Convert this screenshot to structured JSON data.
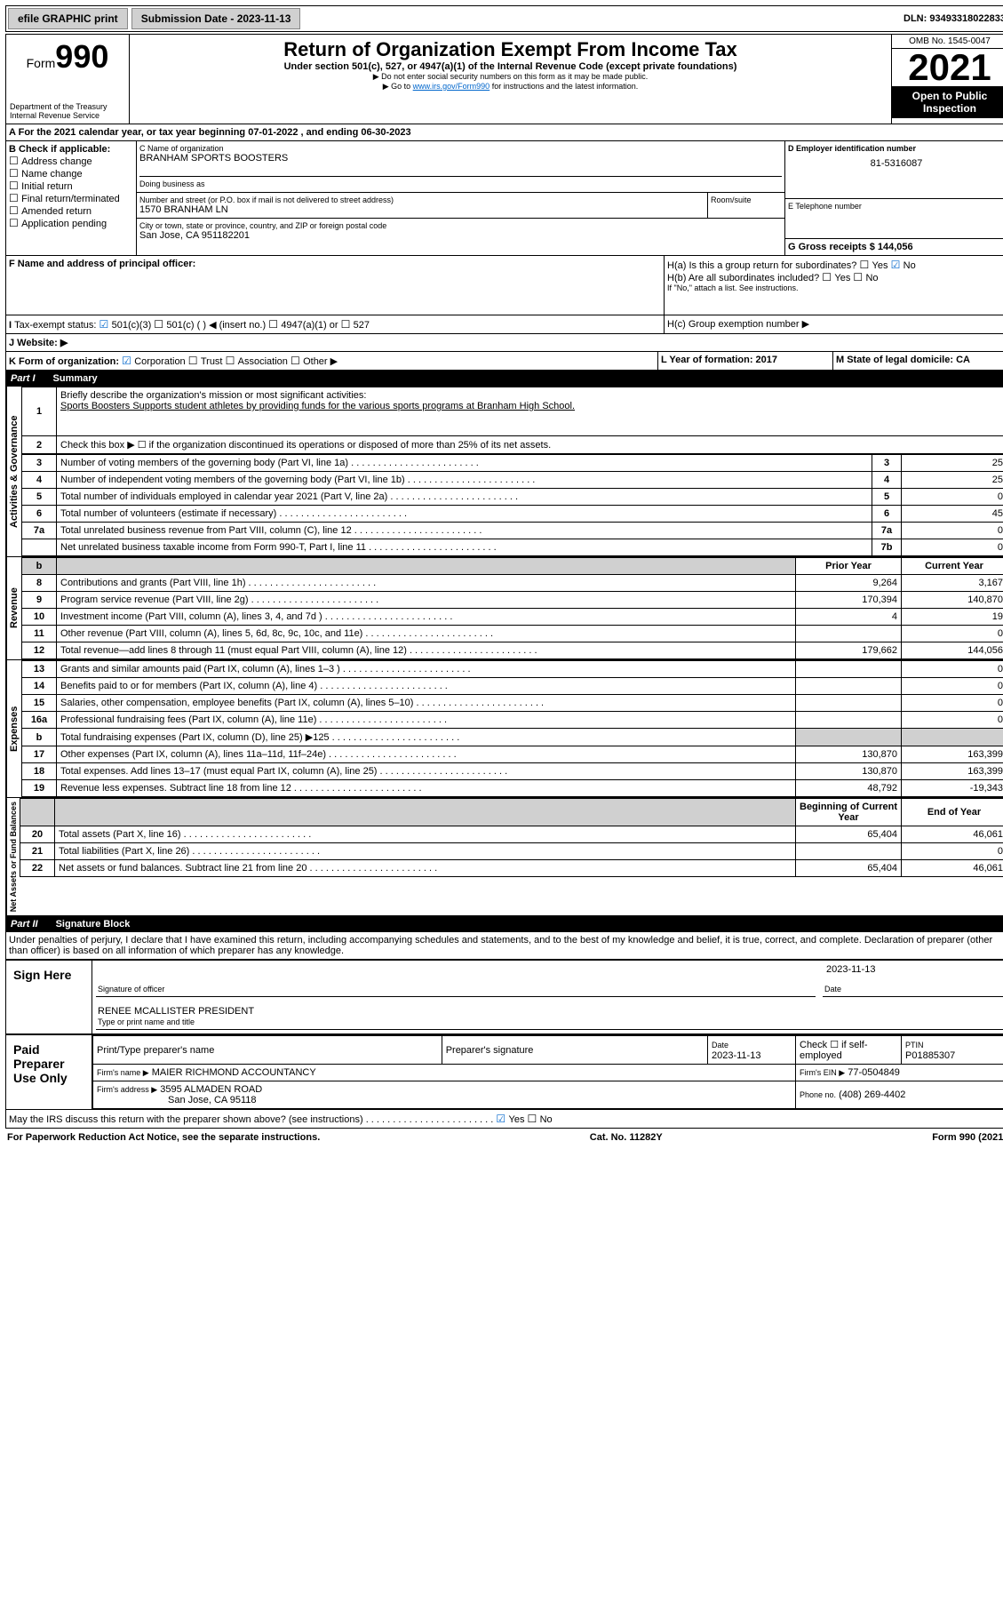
{
  "topbar": {
    "efile": "efile GRAPHIC print",
    "sub_label": "Submission Date - 2023-11-13",
    "dln": "DLN: 93493318022833"
  },
  "header": {
    "form_word": "Form",
    "form_num": "990",
    "dept": "Department of the Treasury",
    "irs": "Internal Revenue Service",
    "title": "Return of Organization Exempt From Income Tax",
    "sub1": "Under section 501(c), 527, or 4947(a)(1) of the Internal Revenue Code (except private foundations)",
    "sub2": "▶ Do not enter social security numbers on this form as it may be made public.",
    "sub3_pre": "▶ Go to ",
    "sub3_link": "www.irs.gov/Form990",
    "sub3_post": " for instructions and the latest information.",
    "omb": "OMB No. 1545-0047",
    "year": "2021",
    "open": "Open to Public Inspection"
  },
  "A": {
    "text": "For the 2021 calendar year, or tax year beginning 07-01-2022  , and ending 06-30-2023"
  },
  "B": {
    "label": "B Check if applicable:",
    "items": [
      "Address change",
      "Name change",
      "Initial return",
      "Final return/terminated",
      "Amended return",
      "Application pending"
    ]
  },
  "C": {
    "name_lbl": "C Name of organization",
    "name": "BRANHAM SPORTS BOOSTERS",
    "dba_lbl": "Doing business as",
    "addr_lbl": "Number and street (or P.O. box if mail is not delivered to street address)",
    "room_lbl": "Room/suite",
    "addr": "1570 BRANHAM LN",
    "city_lbl": "City or town, state or province, country, and ZIP or foreign postal code",
    "city": "San Jose, CA  951182201"
  },
  "D": {
    "lbl": "D Employer identification number",
    "val": "81-5316087"
  },
  "E": {
    "lbl": "E Telephone number"
  },
  "G": {
    "lbl": "G Gross receipts $ 144,056"
  },
  "F": {
    "lbl": "F  Name and address of principal officer:"
  },
  "H": {
    "a": "H(a)  Is this a group return for subordinates?",
    "b": "H(b)  Are all subordinates included?",
    "b_note": "If \"No,\" attach a list. See instructions.",
    "c": "H(c)  Group exemption number ▶",
    "yes": "Yes",
    "no": "No"
  },
  "I": {
    "lbl": "Tax-exempt status:",
    "opts": [
      "501(c)(3)",
      "501(c) (  ) ◀ (insert no.)",
      "4947(a)(1) or",
      "527"
    ]
  },
  "J": {
    "lbl": "J  Website: ▶"
  },
  "K": {
    "lbl": "K Form of organization:",
    "opts": [
      "Corporation",
      "Trust",
      "Association",
      "Other ▶"
    ]
  },
  "L": {
    "lbl": "L Year of formation: 2017"
  },
  "M": {
    "lbl": "M State of legal domicile: CA"
  },
  "part1": {
    "hdr_part": "Part I",
    "hdr": "Summary",
    "line1_lbl": "Briefly describe the organization's mission or most significant activities:",
    "line1": "Sports Boosters Supports student athletes by providing funds for the various sports programs at Branham High School.",
    "line2": "Check this box ▶ ☐  if the organization discontinued its operations or disposed of more than 25% of its net assets.",
    "rows": [
      {
        "n": "3",
        "t": "Number of voting members of the governing body (Part VI, line 1a)",
        "l": "3",
        "v": "25"
      },
      {
        "n": "4",
        "t": "Number of independent voting members of the governing body (Part VI, line 1b)",
        "l": "4",
        "v": "25"
      },
      {
        "n": "5",
        "t": "Total number of individuals employed in calendar year 2021 (Part V, line 2a)",
        "l": "5",
        "v": "0"
      },
      {
        "n": "6",
        "t": "Total number of volunteers (estimate if necessary)",
        "l": "6",
        "v": "45"
      },
      {
        "n": "7a",
        "t": "Total unrelated business revenue from Part VIII, column (C), line 12",
        "l": "7a",
        "v": "0"
      },
      {
        "n": "",
        "t": "Net unrelated business taxable income from Form 990-T, Part I, line 11",
        "l": "7b",
        "v": "0"
      }
    ],
    "col_prior": "Prior Year",
    "col_curr": "Current Year",
    "rev": [
      {
        "n": "8",
        "t": "Contributions and grants (Part VIII, line 1h)",
        "p": "9,264",
        "c": "3,167"
      },
      {
        "n": "9",
        "t": "Program service revenue (Part VIII, line 2g)",
        "p": "170,394",
        "c": "140,870"
      },
      {
        "n": "10",
        "t": "Investment income (Part VIII, column (A), lines 3, 4, and 7d )",
        "p": "4",
        "c": "19"
      },
      {
        "n": "11",
        "t": "Other revenue (Part VIII, column (A), lines 5, 6d, 8c, 9c, 10c, and 11e)",
        "p": "",
        "c": "0"
      },
      {
        "n": "12",
        "t": "Total revenue—add lines 8 through 11 (must equal Part VIII, column (A), line 12)",
        "p": "179,662",
        "c": "144,056"
      }
    ],
    "exp": [
      {
        "n": "13",
        "t": "Grants and similar amounts paid (Part IX, column (A), lines 1–3 )",
        "p": "",
        "c": "0"
      },
      {
        "n": "14",
        "t": "Benefits paid to or for members (Part IX, column (A), line 4)",
        "p": "",
        "c": "0"
      },
      {
        "n": "15",
        "t": "Salaries, other compensation, employee benefits (Part IX, column (A), lines 5–10)",
        "p": "",
        "c": "0"
      },
      {
        "n": "16a",
        "t": "Professional fundraising fees (Part IX, column (A), line 11e)",
        "p": "",
        "c": "0"
      },
      {
        "n": "b",
        "t": "Total fundraising expenses (Part IX, column (D), line 25) ▶125",
        "p": "shade",
        "c": "shade"
      },
      {
        "n": "17",
        "t": "Other expenses (Part IX, column (A), lines 11a–11d, 11f–24e)",
        "p": "130,870",
        "c": "163,399"
      },
      {
        "n": "18",
        "t": "Total expenses. Add lines 13–17 (must equal Part IX, column (A), line 25)",
        "p": "130,870",
        "c": "163,399"
      },
      {
        "n": "19",
        "t": "Revenue less expenses. Subtract line 18 from line 12",
        "p": "48,792",
        "c": "-19,343"
      }
    ],
    "col_beg": "Beginning of Current Year",
    "col_end": "End of Year",
    "bal": [
      {
        "n": "20",
        "t": "Total assets (Part X, line 16)",
        "p": "65,404",
        "c": "46,061"
      },
      {
        "n": "21",
        "t": "Total liabilities (Part X, line 26)",
        "p": "",
        "c": "0"
      },
      {
        "n": "22",
        "t": "Net assets or fund balances. Subtract line 21 from line 20",
        "p": "65,404",
        "c": "46,061"
      }
    ],
    "vl_ag": "Activities & Governance",
    "vl_rev": "Revenue",
    "vl_exp": "Expenses",
    "vl_na": "Net Assets or Fund Balances"
  },
  "part2": {
    "hdr_part": "Part II",
    "hdr": "Signature Block",
    "decl": "Under penalties of perjury, I declare that I have examined this return, including accompanying schedules and statements, and to the best of my knowledge and belief, it is true, correct, and complete. Declaration of preparer (other than officer) is based on all information of which preparer has any knowledge.",
    "sign_here": "Sign Here",
    "sig_off": "Signature of officer",
    "date": "Date",
    "date_v": "2023-11-13",
    "officer": "RENEE MCALLISTER  PRESIDENT",
    "type_lbl": "Type or print name and title",
    "paid": "Paid Preparer Use Only",
    "pt_name": "Print/Type preparer's name",
    "pt_sig": "Preparer's signature",
    "pt_date": "Date",
    "pt_date_v": "2023-11-13",
    "pt_chk": "Check ☐ if self-employed",
    "ptin_l": "PTIN",
    "ptin": "P01885307",
    "firm_name_l": "Firm's name   ▶",
    "firm_name": "MAIER RICHMOND ACCOUNTANCY",
    "firm_ein_l": "Firm's EIN ▶",
    "firm_ein": "77-0504849",
    "firm_addr_l": "Firm's address ▶",
    "firm_addr": "3595 ALMADEN ROAD",
    "firm_city": "San Jose, CA  95118",
    "phone_l": "Phone no.",
    "phone": "(408) 269-4402",
    "may": "May the IRS discuss this return with the preparer shown above? (see instructions)"
  },
  "footer": {
    "pra": "For Paperwork Reduction Act Notice, see the separate instructions.",
    "cat": "Cat. No. 11282Y",
    "form": "Form 990 (2021)"
  }
}
